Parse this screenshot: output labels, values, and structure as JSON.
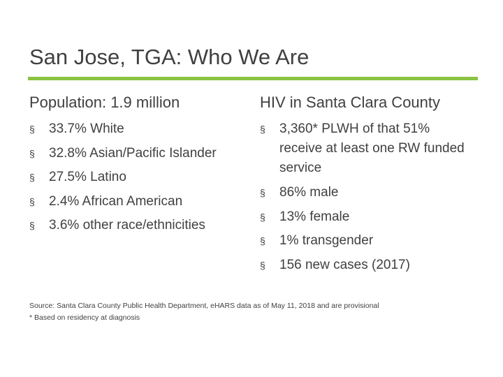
{
  "title": "San Jose, TGA: Who We Are",
  "left_column": {
    "heading": "Population: 1.9 million",
    "items": [
      "33.7% White",
      "32.8% Asian/Pacific Islander",
      "27.5% Latino",
      "2.4% African American",
      "3.6% other race/ethnicities"
    ]
  },
  "right_column": {
    "heading": "HIV in Santa Clara County",
    "items": [
      "3,360* PLWH of that 51% receive at least one RW funded service",
      "86% male",
      "13% female",
      "1% transgender",
      "156 new cases (2017)"
    ]
  },
  "bullet_symbol": "§",
  "source": "Source: Santa Clara County Public Health Department, eHARS data as of May 11, 2018 and are provisional",
  "footnote": "* Based on residency at diagnosis",
  "colors": {
    "accent_rule": "#8bc342",
    "text": "#404040"
  }
}
